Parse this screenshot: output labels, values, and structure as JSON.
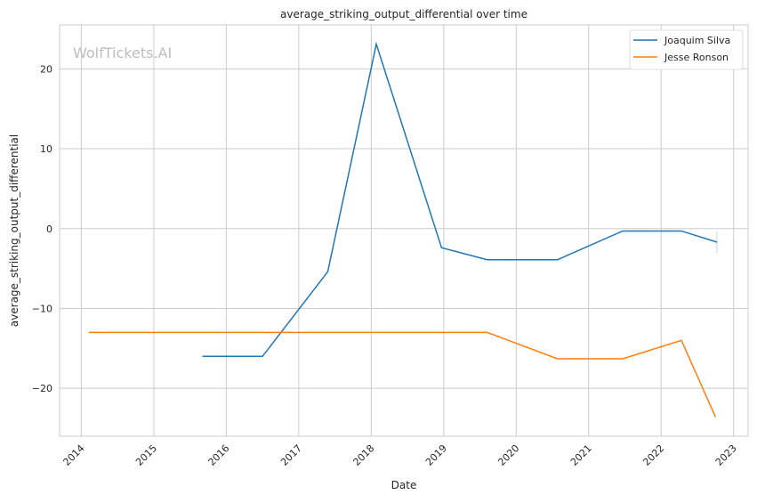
{
  "chart_data": {
    "type": "line",
    "title": "average_striking_output_differential over time",
    "xlabel": "Date",
    "ylabel": "average_striking_output_differential",
    "watermark": "WolfTickets.AI",
    "xlim": [
      2013.7,
      2023.2
    ],
    "ylim": [
      -26,
      25.5
    ],
    "xticks": [
      2014,
      2015,
      2016,
      2017,
      2018,
      2019,
      2020,
      2021,
      2022,
      2023
    ],
    "xtick_labels": [
      "2014",
      "2015",
      "2016",
      "2017",
      "2018",
      "2019",
      "2020",
      "2021",
      "2022",
      "2023"
    ],
    "yticks": [
      -20,
      -10,
      0,
      10,
      20
    ],
    "ytick_labels": [
      "−20",
      "−10",
      "0",
      "10",
      "20"
    ],
    "grid": true,
    "legend_position": "top-right",
    "series": [
      {
        "name": "Joaquim Silva",
        "color": "#1f77b4",
        "x": [
          2015.67,
          2016.5,
          2017.4,
          2018.07,
          2018.97,
          2019.6,
          2020.57,
          2021.47,
          2022.28,
          2022.77
        ],
        "y": [
          -16,
          -16,
          -5.4,
          23.1,
          -2.4,
          -3.9,
          -3.9,
          -0.3,
          -0.3,
          -1.7
        ],
        "band_end": [
          -0.3,
          -3.0
        ]
      },
      {
        "name": "Jesse Ronson",
        "color": "#ff7f0e",
        "x": [
          2014.1,
          2019.6,
          2020.57,
          2021.47,
          2022.28,
          2022.75
        ],
        "y": [
          -13,
          -13,
          -16.3,
          -16.3,
          -14,
          -23.6
        ]
      }
    ]
  }
}
